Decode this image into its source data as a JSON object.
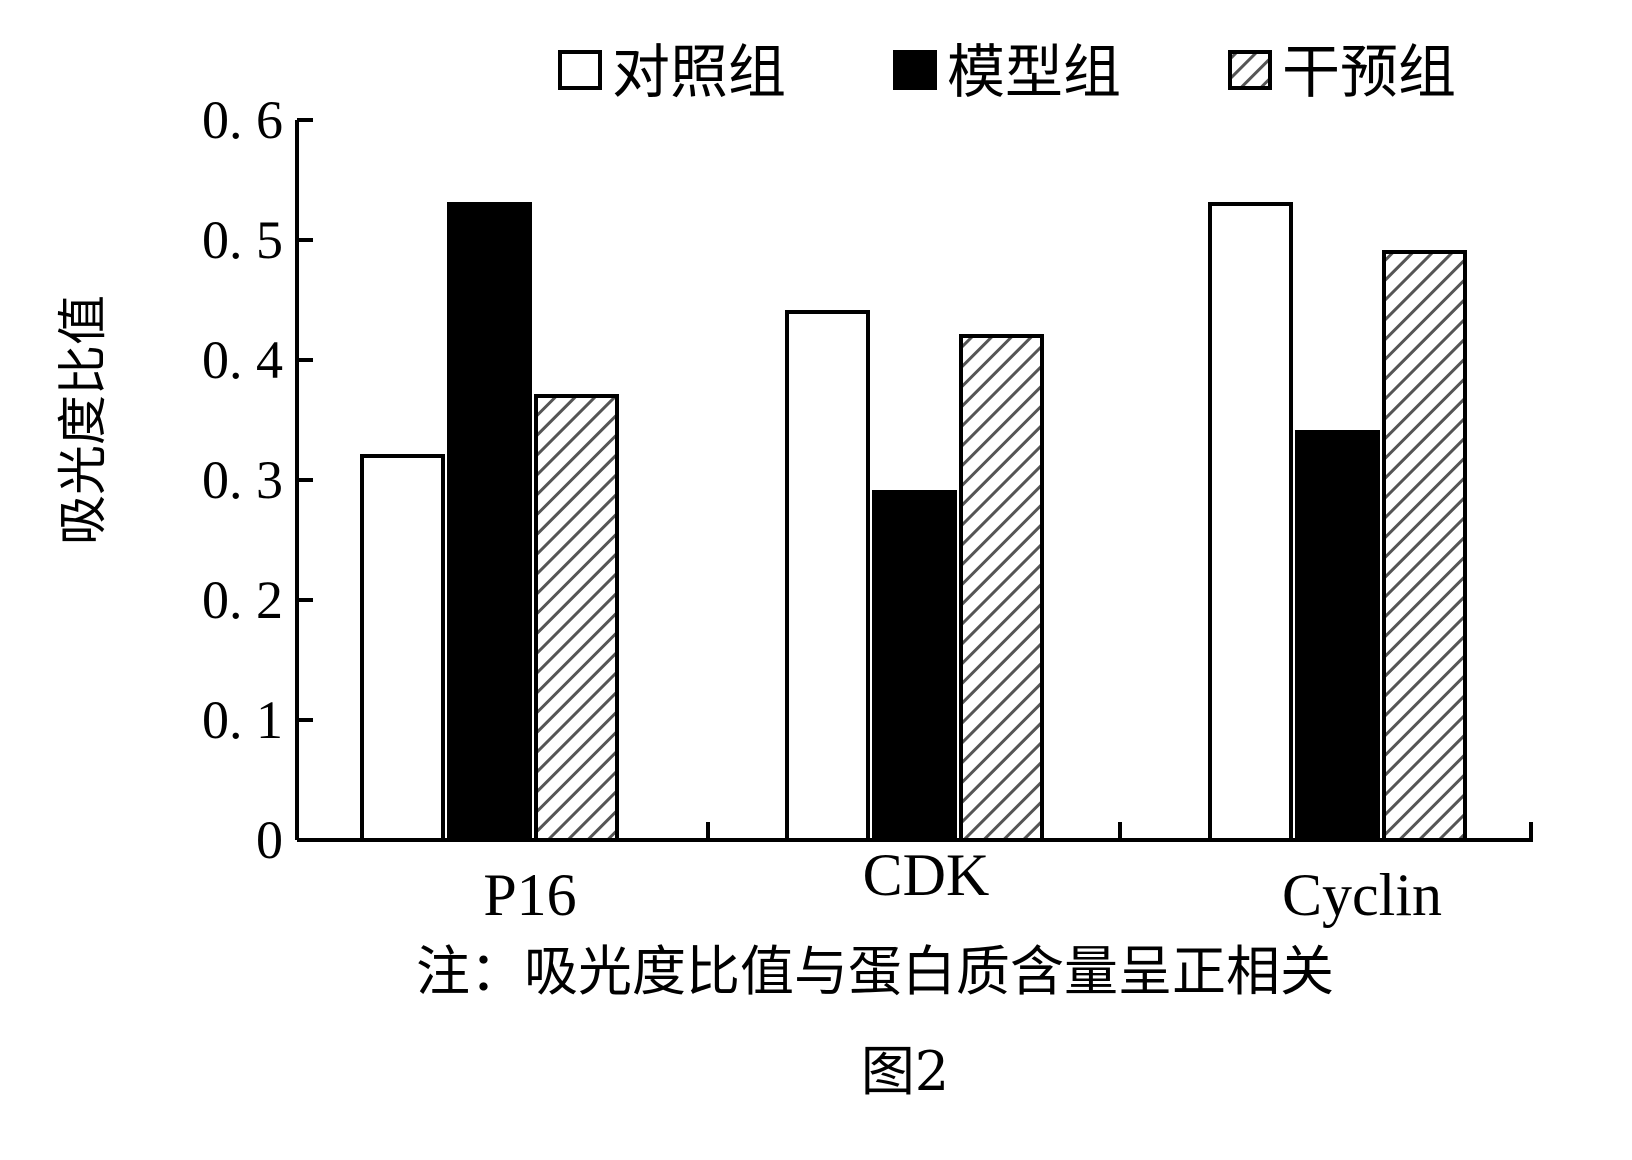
{
  "chart_data": {
    "type": "bar",
    "categories": [
      "P16",
      "CDK",
      "Cyclin"
    ],
    "series": [
      {
        "name": "对照组",
        "values": [
          0.32,
          0.44,
          0.53
        ],
        "style": "outline"
      },
      {
        "name": "模型组",
        "values": [
          0.53,
          0.29,
          0.34
        ],
        "style": "solid"
      },
      {
        "name": "干预组",
        "values": [
          0.37,
          0.42,
          0.49
        ],
        "style": "hatched"
      }
    ],
    "ylabel": "吸光度比值",
    "ylim": [
      0,
      0.6
    ],
    "yticks": [
      "0",
      "0. 1",
      "0. 2",
      "0. 3",
      "0. 4",
      "0. 5",
      "0. 6"
    ],
    "legend_position": "top",
    "grid": false,
    "colors": {
      "outline": "#000000",
      "fill_white": "#ffffff",
      "fill_black": "#000000",
      "hatch": "#555555",
      "hatch_bg": "#ffffff"
    }
  },
  "note": "注：吸光度比值与蛋白质含量呈正相关",
  "figure_label": "图2"
}
